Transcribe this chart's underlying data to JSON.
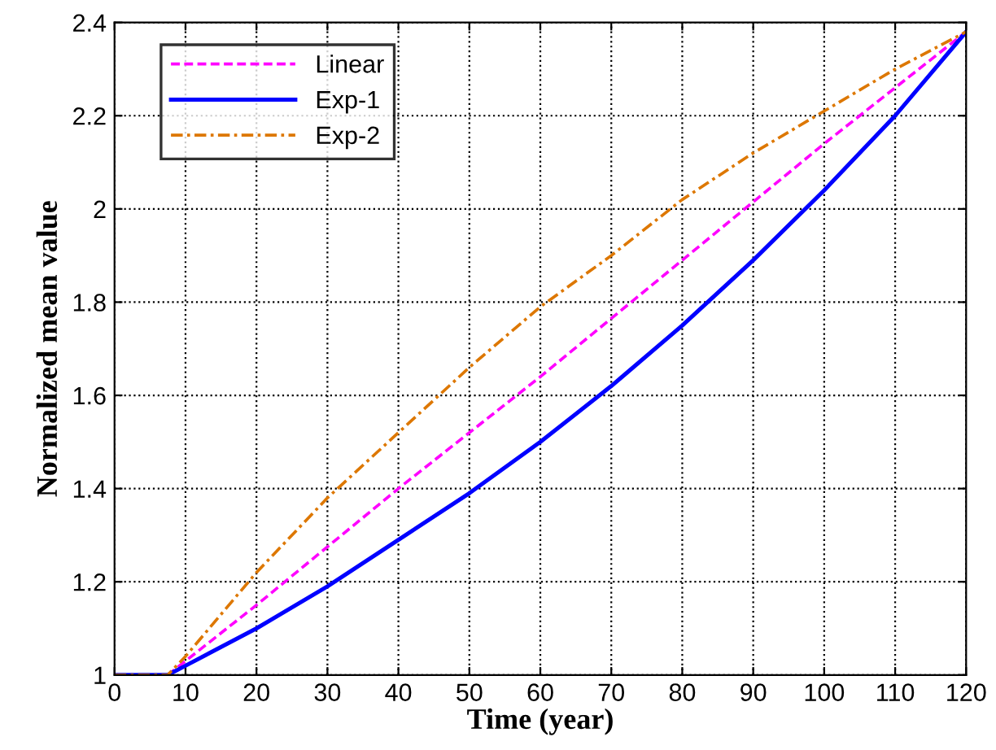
{
  "chart_data": {
    "type": "line",
    "xlabel": "Time (year)",
    "ylabel": "Normalized mean value",
    "xlim": [
      0,
      120
    ],
    "ylim": [
      1,
      2.4
    ],
    "xticks": [
      0,
      10,
      20,
      30,
      40,
      50,
      60,
      70,
      80,
      90,
      100,
      110,
      120
    ],
    "yticks": [
      1,
      1.2,
      1.4,
      1.6,
      1.8,
      2,
      2.2,
      2.4
    ],
    "grid": true,
    "legend": "top left",
    "series": [
      {
        "name": "Linear",
        "color": "#ff00ff",
        "line_style": "dashed",
        "x": [
          0,
          7.5,
          20,
          40,
          60,
          80,
          100,
          120
        ],
        "values": [
          1,
          1,
          1.15,
          1.4,
          1.64,
          1.89,
          2.14,
          2.38
        ]
      },
      {
        "name": "Exp-1",
        "color": "#0000ff",
        "line_style": "solid",
        "x": [
          0,
          7.5,
          10,
          20,
          30,
          40,
          50,
          60,
          70,
          80,
          90,
          100,
          110,
          120
        ],
        "values": [
          1,
          1,
          1.02,
          1.1,
          1.19,
          1.29,
          1.39,
          1.5,
          1.62,
          1.75,
          1.89,
          2.04,
          2.2,
          2.38
        ]
      },
      {
        "name": "Exp-2",
        "color": "#dd7700",
        "line_style": "dashdot",
        "x": [
          0,
          7.5,
          10,
          20,
          30,
          40,
          50,
          60,
          70,
          80,
          90,
          100,
          110,
          120
        ],
        "values": [
          1,
          1,
          1.04,
          1.22,
          1.38,
          1.52,
          1.66,
          1.79,
          1.9,
          2.02,
          2.12,
          2.21,
          2.3,
          2.38
        ]
      }
    ]
  }
}
